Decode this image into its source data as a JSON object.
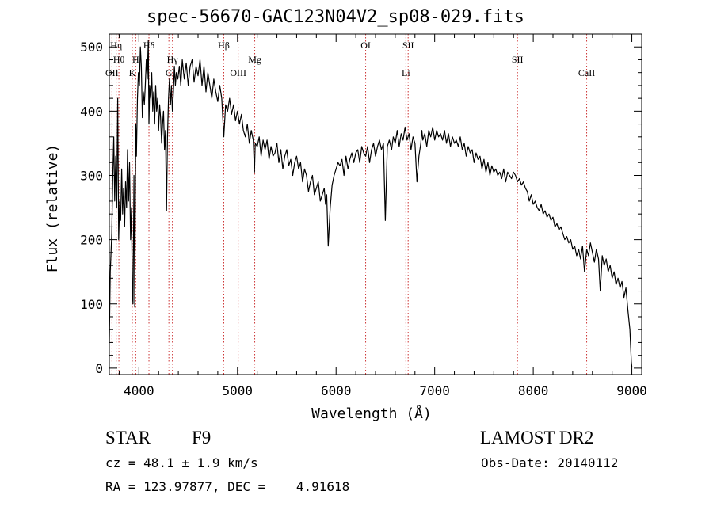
{
  "chart_data": {
    "type": "line",
    "title": "spec-56670-GAC123N04V2_sp08-029.fits",
    "xlabel": "Wavelength (Å)",
    "ylabel": "Flux (relative)",
    "xlim": [
      3700,
      9100
    ],
    "ylim": [
      -10,
      520
    ],
    "xticks": [
      4000,
      5000,
      6000,
      7000,
      8000,
      9000
    ],
    "yticks": [
      0,
      100,
      200,
      300,
      400,
      500
    ],
    "grid": false,
    "legend": "none",
    "line_color": "#000000",
    "marker_color": "#cc3333",
    "series": [
      {
        "x": [
          3700,
          3710,
          3725,
          3735,
          3745,
          3755,
          3765,
          3775,
          3785,
          3795,
          3805,
          3815,
          3825,
          3835,
          3845,
          3855,
          3865,
          3875,
          3885,
          3895,
          3905,
          3915,
          3925,
          3933,
          3940,
          3950,
          3958,
          3968,
          3975,
          3985,
          3995,
          4005,
          4015,
          4025,
          4035,
          4045,
          4055,
          4065,
          4075,
          4085,
          4095,
          4102,
          4110,
          4120,
          4130,
          4140,
          4150,
          4160,
          4170,
          4180,
          4190,
          4200,
          4210,
          4220,
          4230,
          4240,
          4250,
          4260,
          4270,
          4280,
          4290,
          4300,
          4310,
          4320,
          4330,
          4340,
          4350,
          4360,
          4370,
          4380,
          4395,
          4410,
          4425,
          4440,
          4460,
          4480,
          4500,
          4520,
          4540,
          4560,
          4580,
          4600,
          4620,
          4640,
          4660,
          4680,
          4700,
          4720,
          4740,
          4760,
          4780,
          4800,
          4820,
          4840,
          4861,
          4880,
          4900,
          4920,
          4940,
          4960,
          4980,
          5000,
          5020,
          5040,
          5060,
          5080,
          5100,
          5120,
          5140,
          5160,
          5172,
          5180,
          5200,
          5220,
          5240,
          5260,
          5280,
          5300,
          5320,
          5340,
          5360,
          5380,
          5400,
          5420,
          5440,
          5460,
          5480,
          5500,
          5520,
          5540,
          5560,
          5580,
          5600,
          5620,
          5640,
          5660,
          5680,
          5700,
          5720,
          5740,
          5760,
          5780,
          5800,
          5820,
          5840,
          5860,
          5880,
          5893,
          5905,
          5920,
          5940,
          5960,
          5980,
          6000,
          6020,
          6040,
          6060,
          6080,
          6100,
          6120,
          6140,
          6160,
          6180,
          6200,
          6220,
          6240,
          6260,
          6280,
          6300,
          6320,
          6340,
          6360,
          6380,
          6400,
          6420,
          6440,
          6460,
          6480,
          6500,
          6520,
          6540,
          6563,
          6580,
          6600,
          6620,
          6640,
          6660,
          6680,
          6700,
          6720,
          6740,
          6760,
          6780,
          6800,
          6820,
          6840,
          6860,
          6870,
          6880,
          6900,
          6920,
          6940,
          6960,
          6980,
          7000,
          7020,
          7040,
          7060,
          7080,
          7100,
          7120,
          7140,
          7160,
          7180,
          7200,
          7220,
          7240,
          7260,
          7280,
          7300,
          7320,
          7340,
          7360,
          7380,
          7400,
          7420,
          7440,
          7460,
          7480,
          7500,
          7520,
          7540,
          7560,
          7580,
          7600,
          7620,
          7640,
          7660,
          7680,
          7700,
          7720,
          7740,
          7760,
          7780,
          7800,
          7820,
          7840,
          7860,
          7880,
          7900,
          7920,
          7940,
          7960,
          7980,
          8000,
          8020,
          8040,
          8060,
          8080,
          8100,
          8120,
          8140,
          8160,
          8180,
          8200,
          8220,
          8240,
          8260,
          8280,
          8300,
          8320,
          8340,
          8360,
          8380,
          8400,
          8420,
          8440,
          8460,
          8480,
          8500,
          8520,
          8542,
          8560,
          8580,
          8600,
          8620,
          8640,
          8662,
          8680,
          8700,
          8720,
          8740,
          8760,
          8780,
          8800,
          8820,
          8840,
          8860,
          8880,
          8900,
          8920,
          8940,
          8960,
          8980,
          8995,
          9000
        ],
        "values": [
          40,
          150,
          210,
          300,
          360,
          260,
          330,
          250,
          420,
          200,
          260,
          230,
          310,
          240,
          280,
          220,
          290,
          250,
          340,
          260,
          320,
          200,
          250,
          120,
          100,
          300,
          95,
          380,
          330,
          420,
          460,
          440,
          500,
          470,
          390,
          430,
          410,
          440,
          480,
          450,
          510,
          380,
          440,
          420,
          460,
          400,
          430,
          380,
          440,
          400,
          420,
          370,
          410,
          390,
          350,
          380,
          400,
          340,
          370,
          245,
          360,
          420,
          450,
          410,
          440,
          400,
          430,
          470,
          440,
          460,
          450,
          470,
          440,
          480,
          450,
          475,
          440,
          470,
          480,
          445,
          470,
          455,
          480,
          440,
          470,
          430,
          460,
          440,
          420,
          450,
          430,
          415,
          440,
          420,
          360,
          410,
          400,
          420,
          395,
          410,
          385,
          400,
          380,
          395,
          370,
          360,
          380,
          350,
          370,
          355,
          305,
          350,
          345,
          360,
          330,
          355,
          340,
          355,
          325,
          345,
          330,
          335,
          350,
          320,
          340,
          310,
          330,
          340,
          315,
          325,
          300,
          320,
          330,
          310,
          320,
          290,
          310,
          300,
          275,
          290,
          300,
          270,
          280,
          290,
          260,
          270,
          280,
          255,
          270,
          190,
          250,
          285,
          300,
          310,
          320,
          315,
          325,
          300,
          330,
          310,
          325,
          335,
          320,
          335,
          340,
          320,
          345,
          335,
          330,
          345,
          320,
          340,
          350,
          330,
          345,
          355,
          340,
          350,
          230,
          345,
          355,
          340,
          360,
          350,
          370,
          345,
          365,
          355,
          375,
          355,
          365,
          340,
          360,
          350,
          290,
          330,
          350,
          370,
          355,
          365,
          345,
          370,
          360,
          375,
          355,
          370,
          360,
          365,
          355,
          370,
          350,
          365,
          345,
          360,
          350,
          355,
          345,
          360,
          340,
          350,
          330,
          345,
          335,
          340,
          320,
          335,
          325,
          330,
          310,
          325,
          305,
          320,
          300,
          315,
          305,
          310,
          300,
          305,
          295,
          310,
          290,
          305,
          300,
          295,
          305,
          300,
          290,
          295,
          285,
          290,
          280,
          275,
          260,
          270,
          255,
          260,
          250,
          245,
          255,
          240,
          245,
          235,
          240,
          230,
          235,
          220,
          225,
          215,
          220,
          210,
          200,
          205,
          195,
          200,
          185,
          190,
          175,
          185,
          170,
          190,
          150,
          185,
          175,
          195,
          180,
          165,
          185,
          170,
          120,
          175,
          160,
          170,
          150,
          160,
          140,
          150,
          130,
          140,
          125,
          135,
          110,
          125,
          90,
          60,
          10,
          2
        ]
      }
    ],
    "line_markers": [
      {
        "wl": 3770,
        "label": "Hη",
        "row": 1
      },
      {
        "wl": 3797,
        "label": "Hθ",
        "row": 2
      },
      {
        "wl": 3727,
        "label": "OII",
        "row": 3
      },
      {
        "wl": 3933,
        "label": "K",
        "row": 3
      },
      {
        "wl": 3968,
        "label": "H",
        "row": 2
      },
      {
        "wl": 4102,
        "label": "Hδ",
        "row": 1
      },
      {
        "wl": 4304,
        "label": "G",
        "row": 3
      },
      {
        "wl": 4340,
        "label": "Hγ",
        "row": 2
      },
      {
        "wl": 4861,
        "label": "Hβ",
        "row": 1
      },
      {
        "wl": 5007,
        "label": "OIII",
        "row": 3
      },
      {
        "wl": 5175,
        "label": "Mg",
        "row": 2
      },
      {
        "wl": 6300,
        "label": "OI",
        "row": 1
      },
      {
        "wl": 6708,
        "label": "Li",
        "row": 3
      },
      {
        "wl": 6731,
        "label": "SII",
        "row": 1
      },
      {
        "wl": 7840,
        "label": "SII",
        "row": 2
      },
      {
        "wl": 8542,
        "label": "CaII",
        "row": 3
      }
    ]
  },
  "footer": {
    "object_class": "STAR",
    "subclass": "F9",
    "survey": "LAMOST DR2",
    "cz": "cz = 48.1 ± 1.9 km/s",
    "obs_date": "Obs-Date: 20140112",
    "coords": "RA = 123.97877, DEC =    4.91618"
  }
}
